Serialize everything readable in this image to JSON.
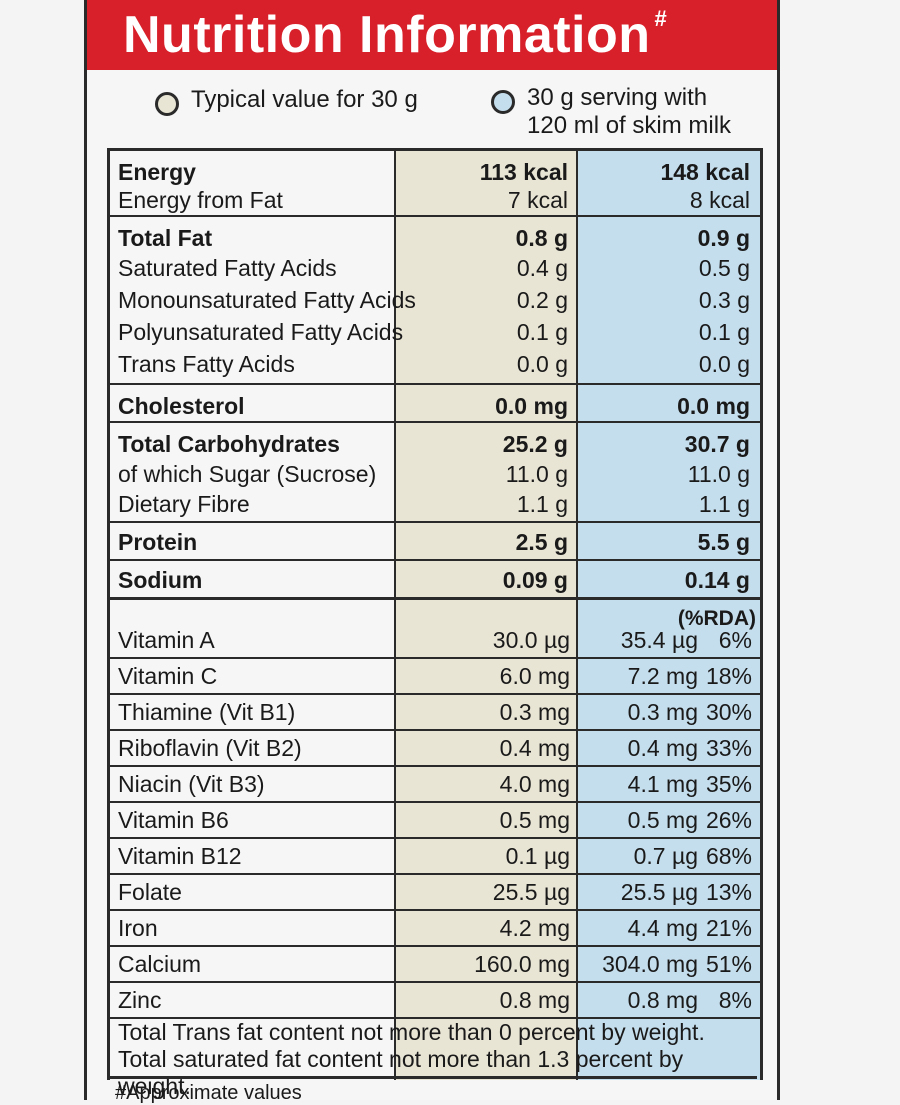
{
  "header": {
    "title": "Nutrition Information",
    "mark": "#"
  },
  "legend": {
    "typical": "Typical value for 30 g",
    "serving_line1": "30 g serving with",
    "serving_line2": "120 ml of skim milk"
  },
  "colors": {
    "header_bg": "#d8202a",
    "col_a": "#e9e5d5",
    "col_b": "#c5deed"
  },
  "rows": {
    "energy": {
      "label": "Energy",
      "a": "113 kcal",
      "b": "148 kcal"
    },
    "energy_fat": {
      "label": "Energy from Fat",
      "a": "7 kcal",
      "b": "8 kcal"
    },
    "total_fat": {
      "label": "Total Fat",
      "a": "0.8 g",
      "b": "0.9 g"
    },
    "sat": {
      "label": "Saturated Fatty Acids",
      "a": "0.4 g",
      "b": "0.5 g"
    },
    "mono": {
      "label": "Monounsaturated Fatty Acids",
      "a": "0.2 g",
      "b": "0.3 g"
    },
    "poly": {
      "label": "Polyunsaturated Fatty Acids",
      "a": "0.1 g",
      "b": "0.1 g"
    },
    "trans": {
      "label": "Trans Fatty Acids",
      "a": "0.0 g",
      "b": "0.0 g"
    },
    "chol": {
      "label": "Cholesterol",
      "a": "0.0 mg",
      "b": "0.0 mg"
    },
    "carb": {
      "label": "Total Carbohydrates",
      "a": "25.2 g",
      "b": "30.7 g"
    },
    "sugar": {
      "label": "of which Sugar (Sucrose)",
      "a": "11.0 g",
      "b": "11.0 g"
    },
    "fibre": {
      "label": "Dietary Fibre",
      "a": "1.1 g",
      "b": "1.1 g"
    },
    "protein": {
      "label": "Protein",
      "a": "2.5 g",
      "b": "5.5 g"
    },
    "sodium": {
      "label": "Sodium",
      "a": "0.09 g",
      "b": "0.14 g"
    }
  },
  "rda_header": "(%RDA)",
  "vitamins": [
    {
      "label": "Vitamin A",
      "a": "30.0 µg",
      "b": "35.4 µg",
      "pct": "6%"
    },
    {
      "label": "Vitamin C",
      "a": "6.0 mg",
      "b": "7.2 mg",
      "pct": "18%"
    },
    {
      "label": "Thiamine (Vit B1)",
      "a": "0.3 mg",
      "b": "0.3 mg",
      "pct": "30%"
    },
    {
      "label": "Riboflavin (Vit B2)",
      "a": "0.4 mg",
      "b": "0.4 mg",
      "pct": "33%"
    },
    {
      "label": "Niacin (Vit B3)",
      "a": "4.0 mg",
      "b": "4.1 mg",
      "pct": "35%"
    },
    {
      "label": "Vitamin B6",
      "a": "0.5 mg",
      "b": "0.5 mg",
      "pct": "26%"
    },
    {
      "label": "Vitamin B12",
      "a": "0.1 µg",
      "b": "0.7 µg",
      "pct": "68%"
    },
    {
      "label": "Folate",
      "a": "25.5 µg",
      "b": "25.5 µg",
      "pct": "13%"
    },
    {
      "label": "Iron",
      "a": "4.2 mg",
      "b": "4.4 mg",
      "pct": "21%"
    },
    {
      "label": "Calcium",
      "a": "160.0 mg",
      "b": "304.0 mg",
      "pct": "51%"
    },
    {
      "label": "Zinc",
      "a": "0.8 mg",
      "b": "0.8 mg",
      "pct": "8%"
    }
  ],
  "footnotes": {
    "line1": "Total Trans fat content not more than 0 percent by weight.",
    "line2": "Total saturated fat content not more than 1.3 percent by weight."
  },
  "approx": "#Approximate values"
}
